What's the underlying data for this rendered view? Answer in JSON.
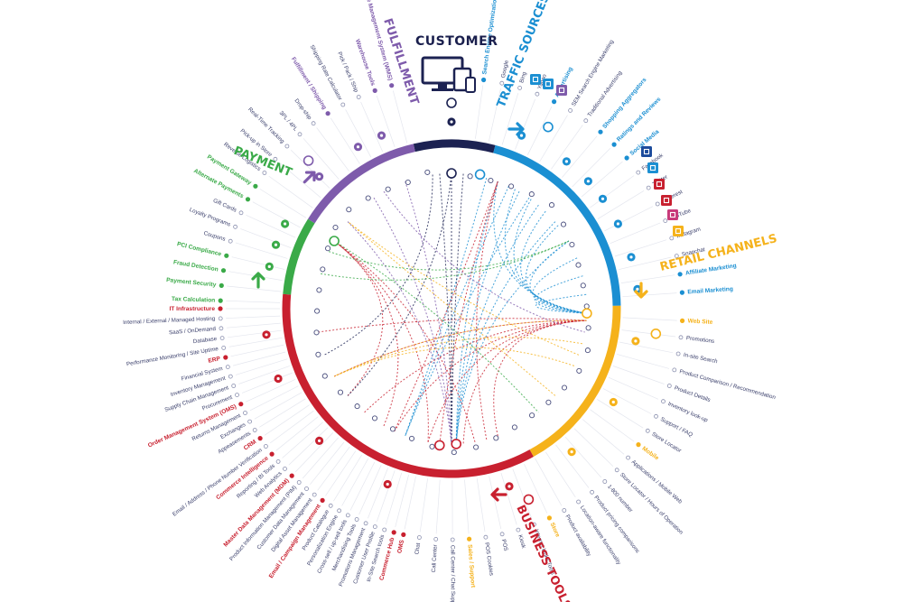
{
  "title": "CUSTOMER",
  "colors": {
    "customer": "#1c2252",
    "traffic": "#1b8fd2",
    "retail": "#f5b21b",
    "business": "#c8202f",
    "payment": "#3aaa48",
    "fulfillment": "#7e5bab",
    "text": "#3a3f6b"
  },
  "segments": [
    {
      "key": "customer",
      "color": "#1c2252"
    },
    {
      "key": "traffic",
      "color": "#1b8fd2"
    },
    {
      "key": "retail",
      "color": "#f5b21b"
    },
    {
      "key": "business",
      "color": "#c8202f"
    },
    {
      "key": "payment",
      "color": "#3aaa48"
    },
    {
      "key": "fulfillment",
      "color": "#7e5bab"
    }
  ],
  "headings": [
    {
      "text": "TRAFFIC SOURCES",
      "color": "#1b8fd2"
    },
    {
      "text": "RETAIL CHANNELS",
      "color": "#f5b21b"
    },
    {
      "text": "BUSINESS TOOLS",
      "color": "#c8202f"
    },
    {
      "text": "PAYMENT",
      "color": "#3aaa48"
    },
    {
      "text": "FULFILLMENT",
      "color": "#7e5bab"
    }
  ],
  "labels": [
    {
      "text": "Search Engine Optimization (SEO)",
      "group": "traffic",
      "heading": true
    },
    {
      "text": "Google",
      "group": "traffic"
    },
    {
      "text": "Bing",
      "group": "traffic"
    },
    {
      "text": "Yahoo",
      "group": "traffic"
    },
    {
      "text": "Advertising",
      "group": "traffic",
      "heading": true
    },
    {
      "text": "SEM Search Engine Marketing",
      "group": "traffic"
    },
    {
      "text": "Traditional Advertising",
      "group": "traffic"
    },
    {
      "text": "Shopping Aggregators",
      "group": "traffic",
      "heading": true
    },
    {
      "text": "Ratings and Reviews",
      "group": "traffic",
      "heading": true
    },
    {
      "text": "Social Media",
      "group": "traffic",
      "heading": true
    },
    {
      "text": "Facebook",
      "group": "traffic"
    },
    {
      "text": "Twitter",
      "group": "traffic"
    },
    {
      "text": "Pinterest",
      "group": "traffic"
    },
    {
      "text": "YouTube",
      "group": "traffic"
    },
    {
      "text": "Instagram",
      "group": "traffic"
    },
    {
      "text": "Snapchat",
      "group": "traffic"
    },
    {
      "text": "Affiliate Marketing",
      "group": "traffic",
      "heading": true
    },
    {
      "text": "Email Marketing",
      "group": "traffic",
      "heading": true
    },
    {
      "text": "Web Site",
      "group": "retail",
      "heading": true
    },
    {
      "text": "Promotions",
      "group": "retail"
    },
    {
      "text": "In-site Search",
      "group": "retail"
    },
    {
      "text": "Product Comparison / Recommendation",
      "group": "retail"
    },
    {
      "text": "Product Details",
      "group": "retail"
    },
    {
      "text": "Inventory look-up",
      "group": "retail"
    },
    {
      "text": "Support / FAQ",
      "group": "retail"
    },
    {
      "text": "Store Locator",
      "group": "retail"
    },
    {
      "text": "Mobile",
      "group": "retail",
      "heading": true
    },
    {
      "text": "Applications / Mobile Web",
      "group": "retail"
    },
    {
      "text": "Store Locator / Hours of Operation",
      "group": "retail"
    },
    {
      "text": "1-800 number",
      "group": "retail"
    },
    {
      "text": "Product pricing comparisons",
      "group": "retail"
    },
    {
      "text": "Location-aware functionality",
      "group": "retail"
    },
    {
      "text": "Product availability",
      "group": "retail"
    },
    {
      "text": "Store",
      "group": "retail",
      "heading": true
    },
    {
      "text": "Internet Links Tools",
      "group": "retail"
    },
    {
      "text": "Kiosk",
      "group": "retail"
    },
    {
      "text": "POS",
      "group": "retail"
    },
    {
      "text": "POS Cookies",
      "group": "retail"
    },
    {
      "text": "Sales / Support",
      "group": "retail",
      "heading": true
    },
    {
      "text": "Call Center / Chat Support",
      "group": "retail"
    },
    {
      "text": "Call Center",
      "group": "retail"
    },
    {
      "text": "Chat",
      "group": "retail"
    },
    {
      "text": "OMS",
      "group": "business",
      "heading": true
    },
    {
      "text": "Commerce Hub",
      "group": "business",
      "heading": true
    },
    {
      "text": "In-Site Search tools",
      "group": "business"
    },
    {
      "text": "Customer User Profile",
      "group": "business"
    },
    {
      "text": "Promotions Management",
      "group": "business"
    },
    {
      "text": "Merchandising Tools",
      "group": "business"
    },
    {
      "text": "Cross-sell / up-sell tools",
      "group": "business"
    },
    {
      "text": "Personalization Engine",
      "group": "business"
    },
    {
      "text": "Product Catalogue",
      "group": "business"
    },
    {
      "text": "Email / Campaign Management",
      "group": "business",
      "heading": true
    },
    {
      "text": "Digital Asset Management",
      "group": "business"
    },
    {
      "text": "Customer Data Management",
      "group": "business"
    },
    {
      "text": "Product Information Management (PIM)",
      "group": "business"
    },
    {
      "text": "Master Data Management (MDM)",
      "group": "business",
      "heading": true
    },
    {
      "text": "Web Analytics",
      "group": "business"
    },
    {
      "text": "Reporting / BI Tools",
      "group": "business"
    },
    {
      "text": "Commerce Intelligence",
      "group": "business",
      "heading": true
    },
    {
      "text": "Email / Address / Phone Number Verification",
      "group": "business"
    },
    {
      "text": "CRM",
      "group": "business",
      "heading": true
    },
    {
      "text": "Appeasements",
      "group": "business"
    },
    {
      "text": "Exchanges",
      "group": "business"
    },
    {
      "text": "Returns Management",
      "group": "business"
    },
    {
      "text": "Order Management System (OMS)",
      "group": "business",
      "heading": true
    },
    {
      "text": "Procurement",
      "group": "business"
    },
    {
      "text": "Supply Chain Management",
      "group": "business"
    },
    {
      "text": "Inventory Management",
      "group": "business"
    },
    {
      "text": "Financial System",
      "group": "business"
    },
    {
      "text": "ERP",
      "group": "business",
      "heading": true
    },
    {
      "text": "Performance Monitoring / Site Uptime",
      "group": "business"
    },
    {
      "text": "Database",
      "group": "business"
    },
    {
      "text": "SaaS / OnDemand",
      "group": "business"
    },
    {
      "text": "Internal / External / Managed Hosting",
      "group": "business"
    },
    {
      "text": "IT Infrastructure",
      "group": "business",
      "heading": true
    },
    {
      "text": "Tax Calculation",
      "group": "payment",
      "heading": true
    },
    {
      "text": "Payment Security",
      "group": "payment",
      "heading": true
    },
    {
      "text": "Fraud Detection",
      "group": "payment",
      "heading": true
    },
    {
      "text": "PCI Compliance",
      "group": "payment",
      "heading": true
    },
    {
      "text": "Coupons",
      "group": "payment"
    },
    {
      "text": "Loyalty Programs",
      "group": "payment"
    },
    {
      "text": "Gift Cards",
      "group": "payment"
    },
    {
      "text": "Alternate Payments",
      "group": "payment",
      "heading": true
    },
    {
      "text": "Payment Gateway",
      "group": "payment",
      "heading": true
    },
    {
      "text": "Reverse Logistics",
      "group": "fulfillment"
    },
    {
      "text": "Pick-up in Store",
      "group": "fulfillment"
    },
    {
      "text": "Real-Time Tracking",
      "group": "fulfillment"
    },
    {
      "text": "3PL / 4PL",
      "group": "fulfillment"
    },
    {
      "text": "Drop-ship",
      "group": "fulfillment"
    },
    {
      "text": "Fulfillment / Shipping",
      "group": "fulfillment",
      "heading": true
    },
    {
      "text": "Shipping Rate Calculator",
      "group": "fulfillment"
    },
    {
      "text": "Pick / Pack / Ship",
      "group": "fulfillment"
    },
    {
      "text": "Warehouse Tools",
      "group": "fulfillment",
      "heading": true
    },
    {
      "text": "Warehouse Management System (WMS)",
      "group": "fulfillment",
      "heading": true
    }
  ]
}
